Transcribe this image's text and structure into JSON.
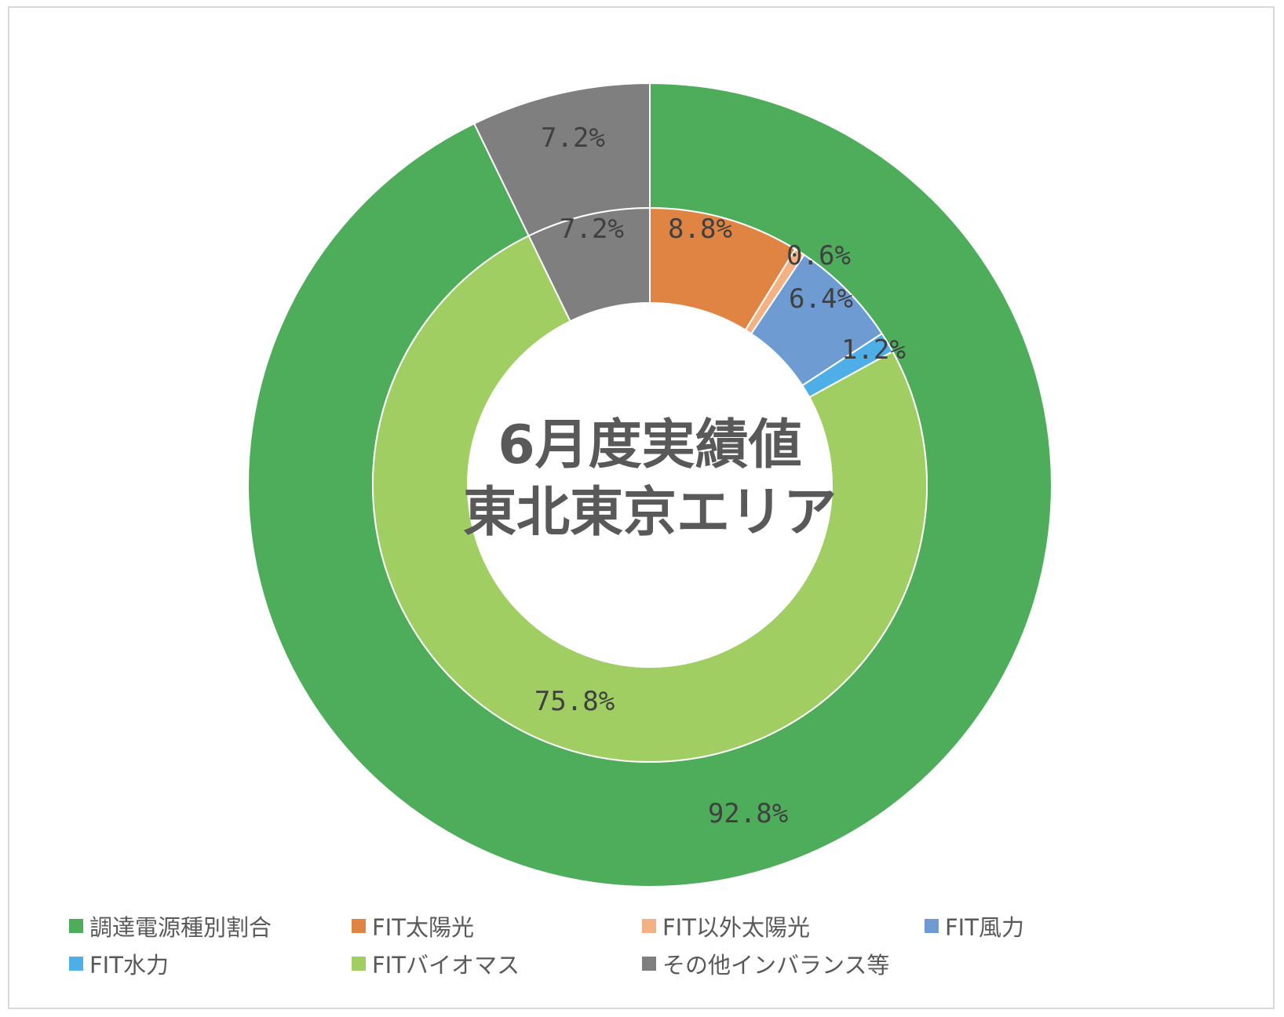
{
  "chart_data": {
    "type": "donut",
    "title": "",
    "center_text": [
      "6月度実績値",
      "東北東京エリア"
    ],
    "rings": [
      {
        "ring": "outer",
        "slices": [
          {
            "name": "調達電源種別割合",
            "value": 92.8,
            "label": "92.8%",
            "color": "#4ead5b"
          },
          {
            "name": "その他インバランス等",
            "value": 7.2,
            "label": "7.2%",
            "color": "#7f7f7f"
          }
        ]
      },
      {
        "ring": "inner",
        "slices": [
          {
            "name": "FIT太陽光",
            "value": 8.8,
            "label": "8.8%",
            "color": "#e08443"
          },
          {
            "name": "FIT以外太陽光",
            "value": 0.6,
            "label": "0.6%",
            "color": "#f4b183"
          },
          {
            "name": "FIT風力",
            "value": 6.4,
            "label": "6.4%",
            "color": "#6e9bd1"
          },
          {
            "name": "FIT水力",
            "value": 1.2,
            "label": "1.2%",
            "color": "#4daee8"
          },
          {
            "name": "FITバイオマス",
            "value": 75.8,
            "label": "75.8%",
            "color": "#a1ce62"
          },
          {
            "name": "その他インバランス等",
            "value": 7.2,
            "label": "7.2%",
            "color": "#7f7f7f"
          }
        ]
      }
    ],
    "legend_position": "bottom",
    "legend": [
      {
        "name": "調達電源種別割合",
        "color": "#4ead5b"
      },
      {
        "name": "FIT太陽光",
        "color": "#e08443"
      },
      {
        "name": "FIT以外太陽光",
        "color": "#f4b183"
      },
      {
        "name": "FIT風力",
        "color": "#6e9bd1"
      },
      {
        "name": "FIT水力",
        "color": "#4daee8"
      },
      {
        "name": "FITバイオマス",
        "color": "#a1ce62"
      },
      {
        "name": "その他インバランス等",
        "color": "#7f7f7f"
      }
    ]
  }
}
